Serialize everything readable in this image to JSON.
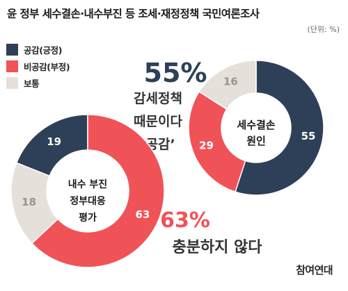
{
  "title": "윤 정부 세수결손·내수부진 등 조세·재정정책 국민여론조사",
  "unit": "(단위: %)",
  "legend": [
    {
      "label": "공감(긍정)",
      "color": "#2e4057"
    },
    {
      "label": "비공감(부정)",
      "color": "#ef5358"
    },
    {
      "label": "보통",
      "color": "#e6e0da"
    }
  ],
  "chart_data": [
    {
      "type": "pie",
      "center_label": [
        "세수결손",
        "원인"
      ],
      "slices": [
        {
          "name": "공감(긍정)",
          "value": 55,
          "color": "#2e4057"
        },
        {
          "name": "비공감(부정)",
          "value": 29,
          "color": "#ef5358"
        },
        {
          "name": "보통",
          "value": 16,
          "color": "#e6e0da"
        }
      ],
      "headline_pct": "55%",
      "headline_text": [
        "감세정책",
        "때문이다",
        "‘공감’"
      ]
    },
    {
      "type": "pie",
      "center_label": [
        "내수 부진",
        "정부대응",
        "평가"
      ],
      "slices": [
        {
          "name": "공감(긍정)",
          "value": 19,
          "color": "#2e4057"
        },
        {
          "name": "비공감(부정)",
          "value": 63,
          "color": "#ef5358"
        },
        {
          "name": "보통",
          "value": 18,
          "color": "#e6e0da"
        }
      ],
      "headline_pct": "63%",
      "headline_text": [
        "충분하지 않다"
      ]
    }
  ],
  "brand": "참여연대"
}
